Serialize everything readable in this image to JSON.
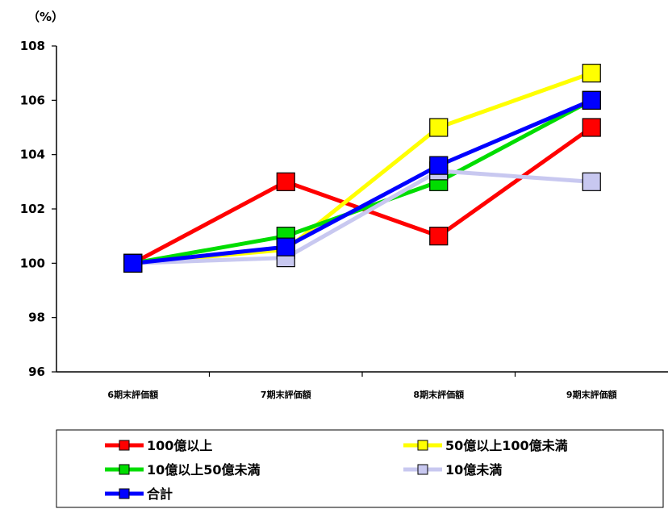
{
  "chart_data": {
    "type": "line",
    "unit_label": "（%）",
    "categories": [
      "6期末評価額",
      "7期末評価額",
      "8期末評価額",
      "9期末評価額"
    ],
    "ylim": [
      96,
      108
    ],
    "yticks": [
      96,
      98,
      100,
      102,
      104,
      106,
      108
    ],
    "grid": false,
    "legend_position": "bottom",
    "series": [
      {
        "name": "100億以上",
        "color": "#ff0000",
        "values": [
          100,
          103,
          101,
          105
        ]
      },
      {
        "name": "50億以上100億未満",
        "color": "#ffff00",
        "values": [
          100,
          100.5,
          105,
          107
        ]
      },
      {
        "name": "10億以上50億未満",
        "color": "#00dd00",
        "values": [
          100,
          101,
          103,
          106
        ]
      },
      {
        "name": "10億未満",
        "color": "#c8c8f0",
        "values": [
          100,
          100.2,
          103.4,
          103
        ]
      },
      {
        "name": "合計",
        "color": "#0000ff",
        "values": [
          100,
          100.6,
          103.6,
          106
        ]
      }
    ]
  }
}
